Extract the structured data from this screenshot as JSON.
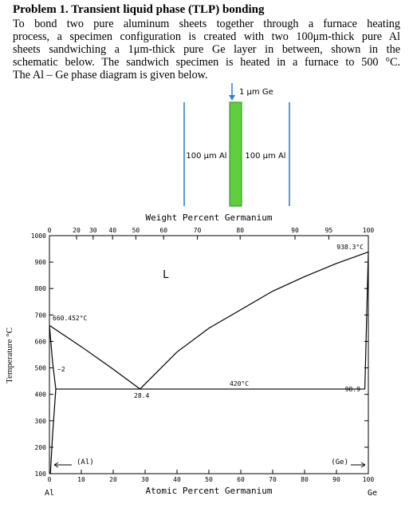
{
  "problem": {
    "title": "Problem 1. Transient liquid phase (TLP) bonding",
    "body_lines": [
      "To bond two pure aluminum sheets together through a furnace heating",
      "process, a specimen configuration is created with two 100μm-thick pure Al",
      "sheets sandwiching a 1μm-thick pure Ge layer in between, shown in the",
      "schematic below.  The sandwich specimen is heated in a furnace to 500 °C.",
      "The Al – Ge phase diagram is given below."
    ]
  },
  "schematic": {
    "ge_label": "1 µm Ge",
    "al_left": "100 µm Al",
    "al_right": "100 µm Al"
  },
  "chart_data": {
    "type": "line",
    "title": "Weight Percent Germanium",
    "x_label": "Atomic Percent Germanium",
    "y_label": "Temperature °C",
    "x_left_label": "Al",
    "x_right_label": "Ge",
    "xlim": [
      0,
      100
    ],
    "ylim": [
      100,
      1000
    ],
    "xticks": [
      0,
      10,
      20,
      30,
      40,
      50,
      60,
      70,
      80,
      90,
      100
    ],
    "yticks": [
      100,
      200,
      300,
      400,
      500,
      600,
      700,
      800,
      900,
      1000
    ],
    "x2ticks": [
      {
        "value": 0,
        "label": "0"
      },
      {
        "value": 8.5,
        "label": "20"
      },
      {
        "value": 13.7,
        "label": "30"
      },
      {
        "value": 19.8,
        "label": "40"
      },
      {
        "value": 27.1,
        "label": "50"
      },
      {
        "value": 35.8,
        "label": "60"
      },
      {
        "value": 46.4,
        "label": "70"
      },
      {
        "value": 59.8,
        "label": "80"
      },
      {
        "value": 77.0,
        "label": "90"
      },
      {
        "value": 87.6,
        "label": "95"
      },
      {
        "value": 100,
        "label": "100"
      }
    ],
    "lines": [
      {
        "color": "#000000",
        "x": [
          0,
          10,
          20,
          28.4
        ],
        "values": [
          660.452,
          580,
          495,
          420
        ]
      },
      {
        "color": "#000000",
        "x": [
          28.4,
          40,
          50,
          60,
          70,
          80,
          90,
          100
        ],
        "values": [
          420,
          560,
          650,
          720,
          790,
          845,
          895,
          938.3
        ]
      },
      {
        "color": "#000000",
        "x": [
          2,
          98.9
        ],
        "values": [
          420,
          420
        ]
      },
      {
        "color": "#000000",
        "x": [
          0,
          1,
          2
        ],
        "values": [
          660.452,
          520,
          420
        ]
      },
      {
        "color": "#000000",
        "x": [
          2,
          1,
          0.3
        ],
        "values": [
          420,
          250,
          100
        ]
      },
      {
        "color": "#000000",
        "x": [
          98.9,
          99.7,
          100
        ],
        "values": [
          420,
          800,
          938.3
        ]
      }
    ],
    "annotations": [
      {
        "text": "660.452°C"
      },
      {
        "text": "~2"
      },
      {
        "text": "28.4"
      },
      {
        "text": "420°C"
      },
      {
        "text": "98.9"
      },
      {
        "text": "938.3°C"
      },
      {
        "text": "L"
      },
      {
        "text": "(Al)"
      },
      {
        "text": "(Ge)"
      }
    ]
  }
}
